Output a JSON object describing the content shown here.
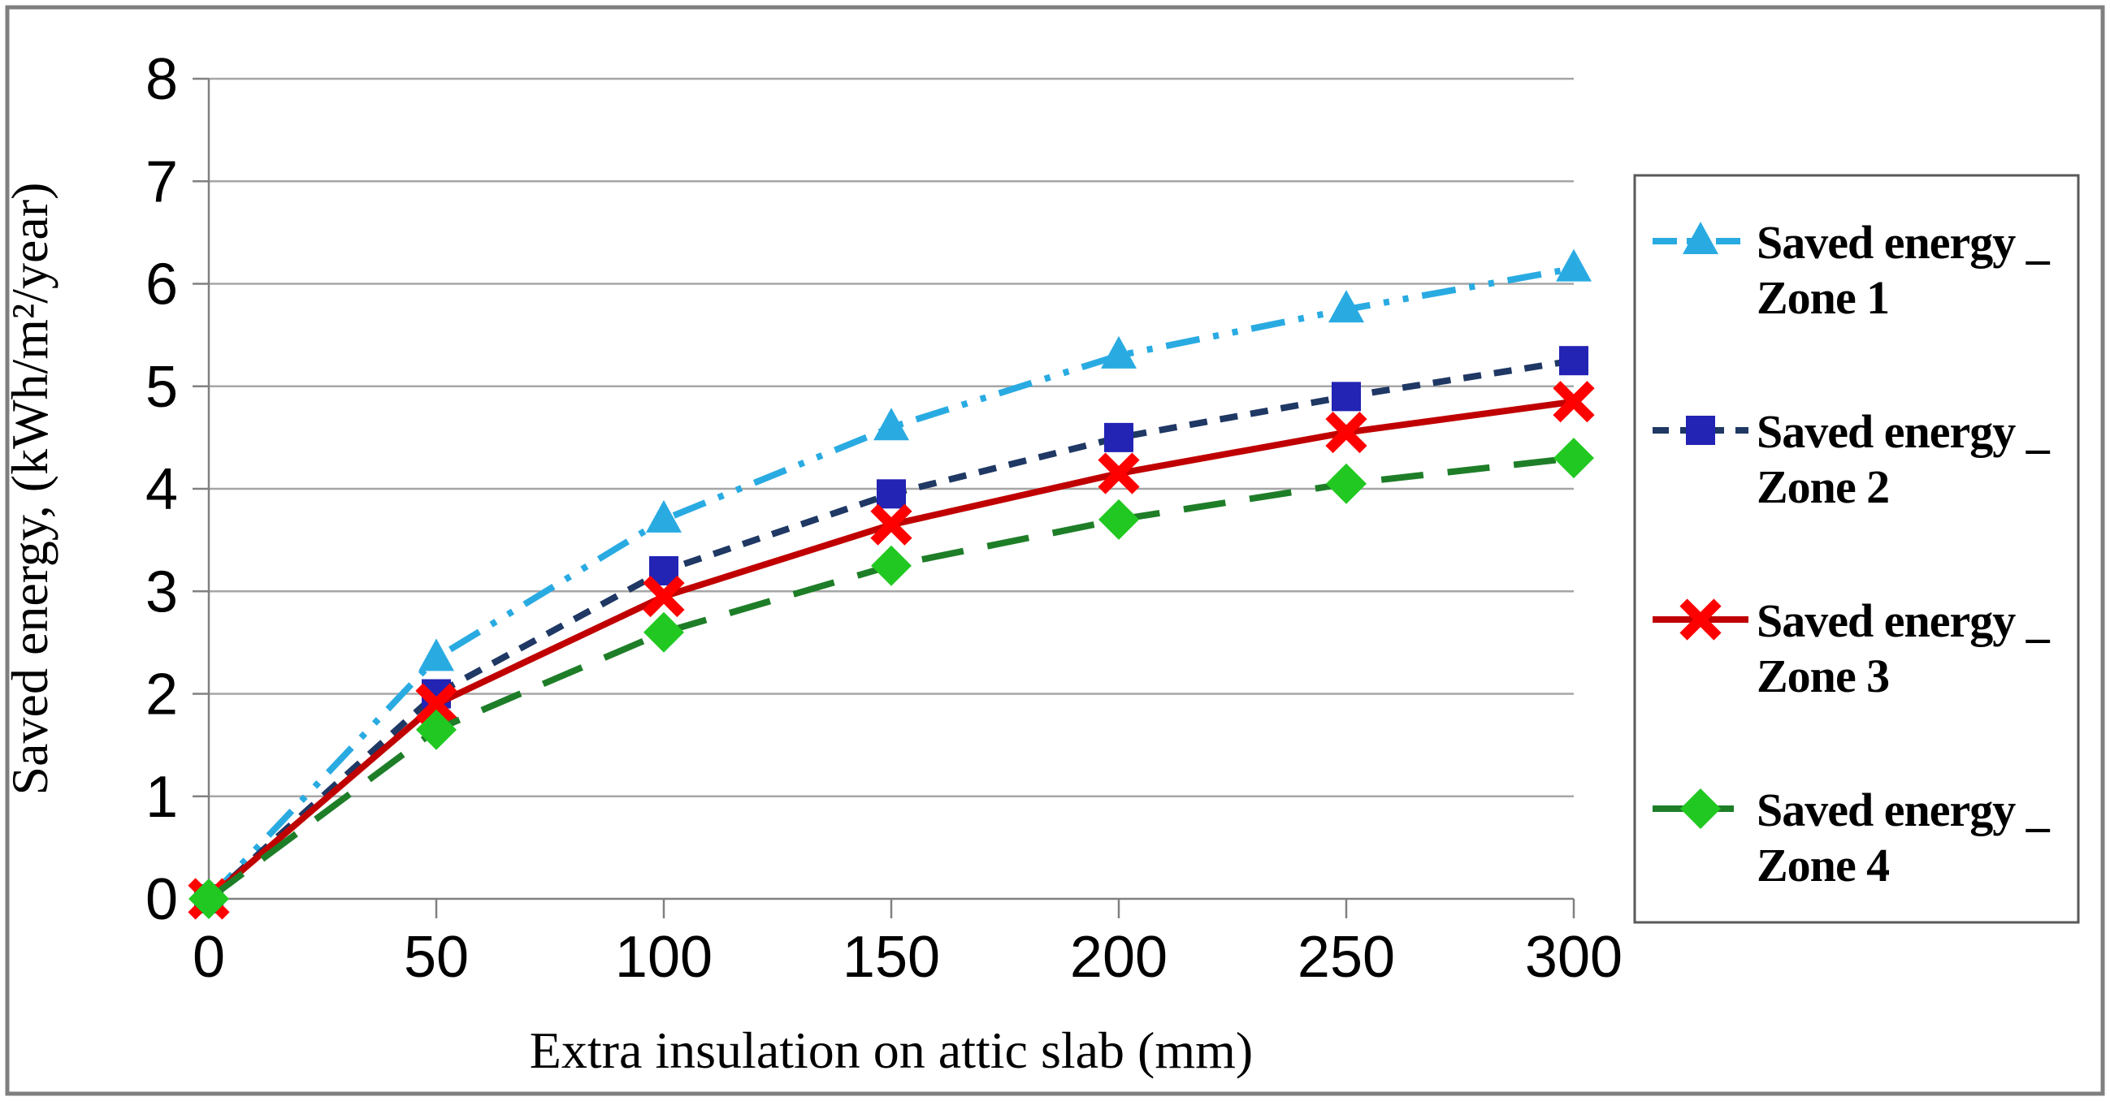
{
  "figure": {
    "background": "#FFFFFF",
    "border_color": "#7F7F7F"
  },
  "legend": {
    "border_color": "#595959",
    "fill": "#FFFFFF",
    "position": "right"
  },
  "chart_data": {
    "type": "line",
    "title": "",
    "xlabel": "Extra insulation on attic slab (mm)",
    "ylabel": "Saved energy, (kWh/m²/year)",
    "x": [
      0,
      50,
      100,
      150,
      200,
      250,
      300
    ],
    "xlim": [
      0,
      300
    ],
    "ylim": [
      0,
      8
    ],
    "x_ticks": [
      "0",
      "50",
      "100",
      "150",
      "200",
      "250",
      "300"
    ],
    "y_ticks": [
      "0",
      "1",
      "2",
      "3",
      "4",
      "5",
      "6",
      "7",
      "8"
    ],
    "grid": "horizontal",
    "grid_color": "#A6A6A6",
    "axis_color": "#808080",
    "legend_position": "right",
    "series": [
      {
        "name": "Saved energy _ Zone 1",
        "legend_lines": [
          "Saved energy _",
          "Zone 1"
        ],
        "values": [
          0,
          2.35,
          3.7,
          4.6,
          5.3,
          5.75,
          6.15
        ],
        "line_color": "#29ABE2",
        "marker_color": "#29ABE2",
        "marker": "triangle-up",
        "dash": "dash-dot-dot"
      },
      {
        "name": "Saved energy _ Zone 2",
        "legend_lines": [
          "Saved energy _",
          "Zone 2"
        ],
        "values": [
          0,
          2.0,
          3.2,
          3.95,
          4.5,
          4.9,
          5.25
        ],
        "line_color": "#1F3864",
        "marker_color": "#2323B4",
        "marker": "square",
        "dash": "dashed"
      },
      {
        "name": "Saved energy _ Zone 3",
        "legend_lines": [
          "Saved energy _",
          "Zone 3"
        ],
        "values": [
          0,
          1.9,
          2.95,
          3.65,
          4.15,
          4.55,
          4.85
        ],
        "line_color": "#C00000",
        "marker_color": "#FF0000",
        "marker": "x-cross",
        "dash": "solid"
      },
      {
        "name": "Saved energy _ Zone 4",
        "legend_lines": [
          "Saved energy _",
          "Zone 4"
        ],
        "values": [
          0,
          1.65,
          2.6,
          3.25,
          3.7,
          4.05,
          4.3
        ],
        "line_color": "#1E7E28",
        "marker_color": "#22C822",
        "marker": "diamond",
        "dash": "long-dash"
      }
    ]
  }
}
